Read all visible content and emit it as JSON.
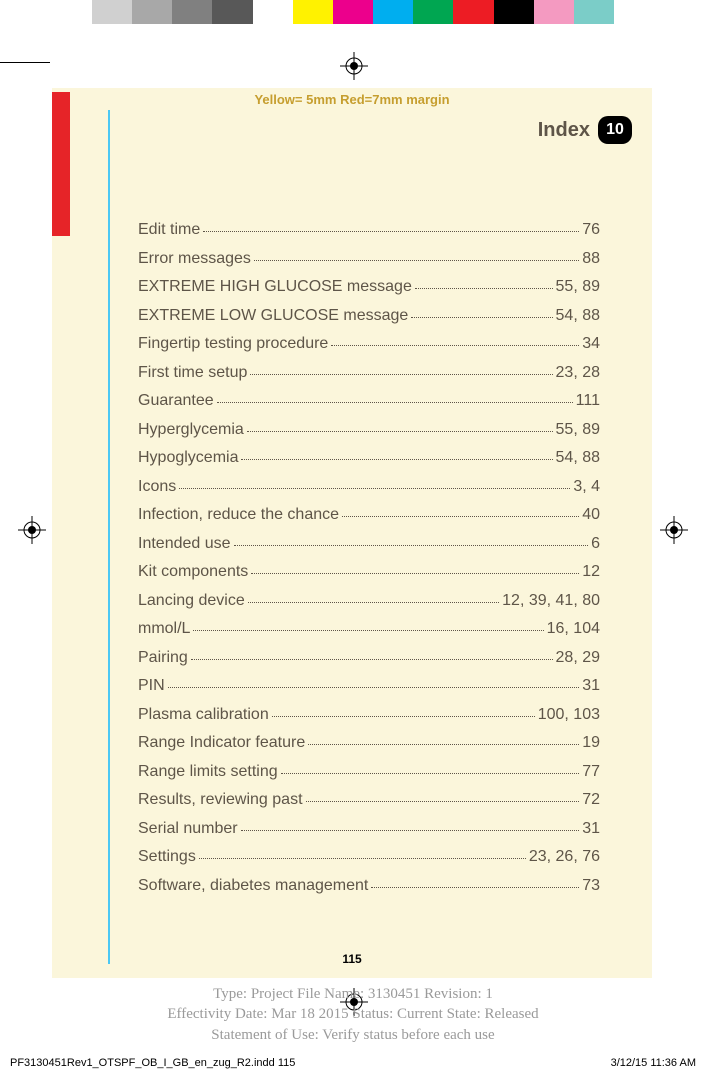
{
  "colors": {
    "cream": "#fbf6db",
    "heading": "#5e5548",
    "margin_note": "#c69e2f",
    "red_tab": "#e62428",
    "cyan_rule": "#4bc8f4",
    "black": "#000000",
    "meta_gray": "#9a9a9a"
  },
  "color_bar": [
    "#d0d0d0",
    "#a8a8a8",
    "#808080",
    "#585858",
    "#ffffff",
    "#fff200",
    "#ec008c",
    "#00aeef",
    "#00a651",
    "#ed1c24",
    "#000000",
    "#f49ac1",
    "#7bcdc8"
  ],
  "margin_note": "Yellow= 5mm  Red=7mm margin",
  "header": {
    "title": "Index",
    "section_number": "10"
  },
  "index_entries": [
    {
      "term": "Edit time",
      "pages": "76"
    },
    {
      "term": "Error messages",
      "pages": "88"
    },
    {
      "term": "EXTREME HIGH GLUCOSE message",
      "pages": "55, 89"
    },
    {
      "term": "EXTREME LOW GLUCOSE message",
      "pages": "54, 88"
    },
    {
      "term": "Fingertip testing procedure",
      "pages": "34"
    },
    {
      "term": "First time setup",
      "pages": "23, 28"
    },
    {
      "term": "Guarantee",
      "pages": "111"
    },
    {
      "term": "Hyperglycemia",
      "pages": "55, 89"
    },
    {
      "term": "Hypoglycemia",
      "pages": "54, 88"
    },
    {
      "term": "Icons",
      "pages": "3, 4"
    },
    {
      "term": "Infection, reduce the chance",
      "pages": "40"
    },
    {
      "term": "Intended use",
      "pages": "6"
    },
    {
      "term": "Kit components",
      "pages": "12"
    },
    {
      "term": "Lancing device",
      "pages": "12, 39, 41, 80"
    },
    {
      "term": "mmol/L",
      "pages": "16, 104"
    },
    {
      "term": "Pairing",
      "pages": "28, 29"
    },
    {
      "term": "PIN",
      "pages": "31"
    },
    {
      "term": "Plasma calibration",
      "pages": "100, 103"
    },
    {
      "term": "Range Indicator feature",
      "pages": "19"
    },
    {
      "term": "Range limits setting",
      "pages": "77"
    },
    {
      "term": "Results, reviewing past",
      "pages": "72"
    },
    {
      "term": "Serial number",
      "pages": "31"
    },
    {
      "term": "Settings",
      "pages": "23, 26, 76"
    },
    {
      "term": "Software, diabetes management",
      "pages": "73"
    }
  ],
  "page_number": "115",
  "meta": {
    "line1": "Type: Project File  Name: 3130451  Revision: 1",
    "line2": "Effectivity Date: Mar 18 2015     Status: Current     State: Released",
    "line3": "Statement of Use: Verify status before each use"
  },
  "footer": {
    "left": "PF3130451Rev1_OTSPF_OB_I_GB_en_zug_R2.indd   115",
    "right": "3/12/15   11:36 AM"
  }
}
